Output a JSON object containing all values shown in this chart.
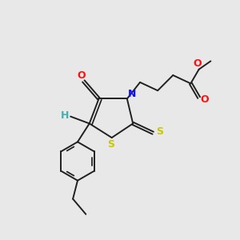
{
  "bg_color": "#e8e8e8",
  "bond_color": "#202020",
  "bond_width": 1.4,
  "N_color": "#1010ff",
  "O_color": "#ff1010",
  "S_color": "#c8c800",
  "H_color": "#40b0b0",
  "figsize": [
    3.0,
    3.0
  ],
  "dpi": 100,
  "xlim": [
    0,
    10
  ],
  "ylim": [
    0,
    10
  ],
  "label_fontsize": 9.0
}
